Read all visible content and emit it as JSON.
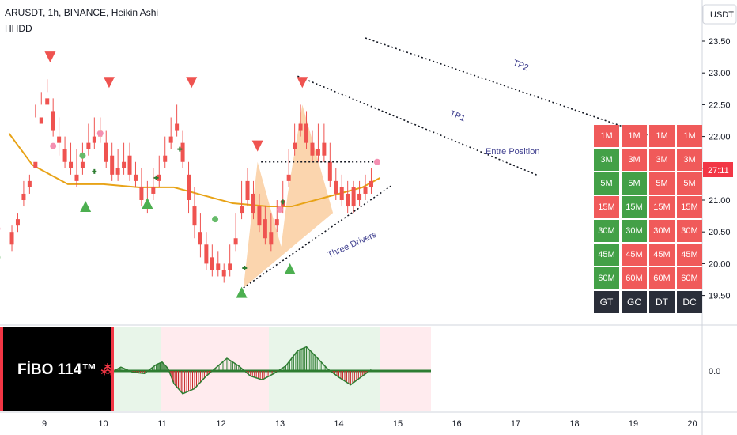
{
  "header": {
    "symbol_line": "ARUSDT, 1h, BINANCE, Heikin Ashi",
    "indicator_line": "HHDD"
  },
  "price_axis": {
    "currency": "USDT",
    "ticks": [
      "23.50",
      "23.00",
      "22.50",
      "22.00",
      "21.50",
      "21.00",
      "20.50",
      "20.00",
      "19.50"
    ],
    "countdown": "27:11",
    "countdown_color": "#f23645"
  },
  "oscillator_axis": {
    "zero_label": "0.0"
  },
  "time_axis": {
    "ticks": [
      "9",
      "10",
      "11",
      "12",
      "13",
      "14",
      "15",
      "16",
      "17",
      "18",
      "19",
      "20"
    ]
  },
  "annotations": {
    "tp1": "TP1",
    "tp2": "TP2",
    "entry": "Entre Position",
    "pattern": "Three Drivers"
  },
  "fibo": {
    "label": "FİBO 114™",
    "icon": "burst-icon"
  },
  "timeframe_table": {
    "columns": [
      "GT",
      "GC",
      "DT",
      "DC"
    ],
    "rows": [
      {
        "cells": [
          {
            "t": "1M",
            "c": "red"
          },
          {
            "t": "1M",
            "c": "red"
          },
          {
            "t": "1M",
            "c": "red"
          },
          {
            "t": "1M",
            "c": "red"
          }
        ]
      },
      {
        "cells": [
          {
            "t": "3M",
            "c": "green"
          },
          {
            "t": "3M",
            "c": "red"
          },
          {
            "t": "3M",
            "c": "red"
          },
          {
            "t": "3M",
            "c": "red"
          }
        ]
      },
      {
        "cells": [
          {
            "t": "5M",
            "c": "green"
          },
          {
            "t": "5M",
            "c": "green"
          },
          {
            "t": "5M",
            "c": "red"
          },
          {
            "t": "5M",
            "c": "red"
          }
        ]
      },
      {
        "cells": [
          {
            "t": "15M",
            "c": "red"
          },
          {
            "t": "15M",
            "c": "green"
          },
          {
            "t": "15M",
            "c": "red"
          },
          {
            "t": "15M",
            "c": "red"
          }
        ]
      },
      {
        "cells": [
          {
            "t": "30M",
            "c": "green"
          },
          {
            "t": "30M",
            "c": "green"
          },
          {
            "t": "30M",
            "c": "red"
          },
          {
            "t": "30M",
            "c": "red"
          }
        ]
      },
      {
        "cells": [
          {
            "t": "45M",
            "c": "green"
          },
          {
            "t": "45M",
            "c": "red"
          },
          {
            "t": "45M",
            "c": "red"
          },
          {
            "t": "45M",
            "c": "red"
          }
        ]
      },
      {
        "cells": [
          {
            "t": "60M",
            "c": "green"
          },
          {
            "t": "60M",
            "c": "red"
          },
          {
            "t": "60M",
            "c": "red"
          },
          {
            "t": "60M",
            "c": "red"
          }
        ]
      }
    ]
  },
  "colors": {
    "bull": "#26a69a",
    "bear": "#ef5350",
    "ma": "#e8a317",
    "cell_red": "#f05a5a",
    "cell_green": "#43a047",
    "cell_dark": "#2a2e39",
    "pattern_fill": "#f7b36b"
  },
  "chart_data": {
    "type": "candlestick",
    "x_unit": "day of month",
    "xlim": [
      8.4,
      20.4
    ],
    "ylim": [
      19.35,
      23.75
    ],
    "candles": [
      [
        8.45,
        20.5,
        20.6,
        20.3,
        20.2
      ],
      [
        8.55,
        20.7,
        20.8,
        20.6,
        20.5
      ],
      [
        8.65,
        21.1,
        21.3,
        21.0,
        20.9
      ],
      [
        8.75,
        21.3,
        21.4,
        21.2,
        21.1
      ],
      [
        8.85,
        21.6,
        22.5,
        21.5,
        22.3
      ],
      [
        8.95,
        22.3,
        22.7,
        22.2,
        22.5
      ],
      [
        9.05,
        22.6,
        22.9,
        22.5,
        22.7
      ],
      [
        9.15,
        22.4,
        22.6,
        22.1,
        22.0
      ],
      [
        9.25,
        22.0,
        22.3,
        21.9,
        21.7
      ],
      [
        9.35,
        21.8,
        22.0,
        21.6,
        21.5
      ],
      [
        9.45,
        21.6,
        21.9,
        21.5,
        21.4
      ],
      [
        9.55,
        21.4,
        21.8,
        21.3,
        21.2
      ],
      [
        9.65,
        21.6,
        21.9,
        21.5,
        21.4
      ],
      [
        9.75,
        21.9,
        22.2,
        21.8,
        21.7
      ],
      [
        9.85,
        22.0,
        22.3,
        21.9,
        21.8
      ],
      [
        9.95,
        22.1,
        22.3,
        22.0,
        21.9
      ],
      [
        10.05,
        21.9,
        22.1,
        21.6,
        21.5
      ],
      [
        10.15,
        21.7,
        21.9,
        21.4,
        21.3
      ],
      [
        10.25,
        21.5,
        21.8,
        21.4,
        21.3
      ],
      [
        10.35,
        21.6,
        21.9,
        21.5,
        21.4
      ],
      [
        10.45,
        21.7,
        21.9,
        21.4,
        21.3
      ],
      [
        10.55,
        21.4,
        21.6,
        21.3,
        21.2
      ],
      [
        10.65,
        21.2,
        21.5,
        21.0,
        20.9
      ],
      [
        10.75,
        21.0,
        21.3,
        20.9,
        20.8
      ],
      [
        10.85,
        21.2,
        21.5,
        21.1,
        21.0
      ],
      [
        10.95,
        21.4,
        21.7,
        21.3,
        21.2
      ],
      [
        11.05,
        21.7,
        22.0,
        21.6,
        21.5
      ],
      [
        11.15,
        22.0,
        22.3,
        21.9,
        21.8
      ],
      [
        11.25,
        22.2,
        22.5,
        22.1,
        22.0
      ],
      [
        11.35,
        21.9,
        22.1,
        21.6,
        21.5
      ],
      [
        11.45,
        21.4,
        21.6,
        21.0,
        20.8
      ],
      [
        11.55,
        20.9,
        21.2,
        20.6,
        20.4
      ],
      [
        11.65,
        20.5,
        20.8,
        20.3,
        20.1
      ],
      [
        11.75,
        20.3,
        20.5,
        20.0,
        19.9
      ],
      [
        11.85,
        20.1,
        20.3,
        19.9,
        19.8
      ],
      [
        11.95,
        20.0,
        20.2,
        19.9,
        19.8
      ],
      [
        12.05,
        19.9,
        20.0,
        19.8,
        19.7
      ],
      [
        12.15,
        20.0,
        20.3,
        19.9,
        19.8
      ],
      [
        12.25,
        20.4,
        20.8,
        20.3,
        20.2
      ],
      [
        12.35,
        20.9,
        21.3,
        20.8,
        20.7
      ],
      [
        12.45,
        21.3,
        21.5,
        21.0,
        20.9
      ],
      [
        12.55,
        21.1,
        21.3,
        20.8,
        20.7
      ],
      [
        12.65,
        20.9,
        21.1,
        20.6,
        20.5
      ],
      [
        12.75,
        20.7,
        20.9,
        20.4,
        20.3
      ],
      [
        12.85,
        20.5,
        20.8,
        20.3,
        20.2
      ],
      [
        12.95,
        20.7,
        21.0,
        20.6,
        20.5
      ],
      [
        13.05,
        21.0,
        21.3,
        20.9,
        20.8
      ],
      [
        13.15,
        21.4,
        21.8,
        21.3,
        21.2
      ],
      [
        13.25,
        21.9,
        22.2,
        21.8,
        21.7
      ],
      [
        13.35,
        22.2,
        22.5,
        22.1,
        22.0
      ],
      [
        13.45,
        22.2,
        22.4,
        21.9,
        21.8
      ],
      [
        13.55,
        21.9,
        22.1,
        21.7,
        21.6
      ],
      [
        13.65,
        21.8,
        22.2,
        21.7,
        21.6
      ],
      [
        13.75,
        21.9,
        22.2,
        21.7,
        21.6
      ],
      [
        13.85,
        21.6,
        21.9,
        21.3,
        21.2
      ],
      [
        13.95,
        21.3,
        21.5,
        21.1,
        21.0
      ],
      [
        14.05,
        21.2,
        21.4,
        21.0,
        20.9
      ],
      [
        14.15,
        21.1,
        21.3,
        20.9,
        20.8
      ],
      [
        14.25,
        21.2,
        21.3,
        20.9,
        20.8
      ],
      [
        14.35,
        21.1,
        21.3,
        21.0,
        20.9
      ],
      [
        14.45,
        21.2,
        21.4,
        21.1,
        21.0
      ],
      [
        14.55,
        21.3,
        21.5,
        21.2,
        21.1
      ]
    ],
    "candle_fields": [
      "x",
      "open",
      "high",
      "close",
      "low"
    ],
    "ma_line": [
      [
        8.4,
        22.05
      ],
      [
        8.8,
        21.55
      ],
      [
        9.4,
        21.25
      ],
      [
        10.0,
        21.25
      ],
      [
        10.6,
        21.2
      ],
      [
        11.2,
        21.2
      ],
      [
        11.6,
        21.1
      ],
      [
        12.2,
        20.95
      ],
      [
        12.8,
        20.9
      ],
      [
        13.2,
        20.9
      ],
      [
        13.8,
        21.05
      ],
      [
        14.4,
        21.2
      ],
      [
        14.7,
        21.35
      ]
    ],
    "pattern_polygons": [
      [
        [
          12.38,
          19.62
        ],
        [
          12.62,
          21.6
        ],
        [
          13.02,
          20.27
        ],
        [
          13.13,
          21.08
        ],
        [
          13.38,
          22.5
        ],
        [
          13.9,
          20.8
        ]
      ]
    ],
    "trend_lines": [
      {
        "from": [
          12.38,
          19.62
        ],
        "to": [
          14.88,
          21.22
        ],
        "style": "dotted"
      },
      {
        "from": [
          12.68,
          21.6
        ],
        "to": [
          14.65,
          21.6
        ],
        "style": "dotted"
      },
      {
        "from": [
          13.3,
          22.95
        ],
        "to": [
          17.4,
          21.38
        ],
        "style": "dotted"
      },
      {
        "from": [
          14.45,
          23.55
        ],
        "to": [
          19.25,
          22.02
        ],
        "style": "dotted"
      }
    ],
    "sell_markers": [
      [
        9.1,
        23.25
      ],
      [
        10.1,
        22.85
      ],
      [
        11.5,
        22.85
      ],
      [
        12.62,
        21.85
      ],
      [
        13.38,
        22.85
      ]
    ],
    "buy_markers": [
      [
        9.7,
        20.9
      ],
      [
        10.75,
        20.95
      ],
      [
        12.35,
        19.55
      ],
      [
        13.17,
        19.92
      ]
    ],
    "pink_dots": [
      [
        8.2,
        20.55
      ],
      [
        9.15,
        21.85
      ],
      [
        9.95,
        22.05
      ],
      [
        13.0,
        20.85
      ],
      [
        14.65,
        21.6
      ]
    ],
    "green_dots": [
      [
        8.2,
        20.1
      ],
      [
        9.65,
        21.7
      ],
      [
        11.9,
        20.7
      ]
    ],
    "plus_markers": [
      [
        9.85,
        21.45
      ],
      [
        10.9,
        21.35
      ],
      [
        11.3,
        21.8
      ],
      [
        12.4,
        19.93
      ],
      [
        13.05,
        20.97
      ]
    ],
    "oscillator": [
      [
        10.18,
        0.0
      ],
      [
        10.3,
        0.15
      ],
      [
        10.5,
        -0.05
      ],
      [
        10.7,
        -0.1
      ],
      [
        10.9,
        0.25
      ],
      [
        11.0,
        0.35
      ],
      [
        11.1,
        0.1
      ],
      [
        11.2,
        -0.5
      ],
      [
        11.35,
        -0.9
      ],
      [
        11.55,
        -0.7
      ],
      [
        11.75,
        -0.2
      ],
      [
        11.9,
        0.1
      ],
      [
        12.1,
        0.5
      ],
      [
        12.3,
        0.2
      ],
      [
        12.5,
        -0.2
      ],
      [
        12.7,
        -0.35
      ],
      [
        12.9,
        -0.1
      ],
      [
        13.1,
        0.2
      ],
      [
        13.3,
        0.8
      ],
      [
        13.45,
        0.95
      ],
      [
        13.6,
        0.6
      ],
      [
        13.8,
        0.1
      ],
      [
        14.0,
        -0.25
      ],
      [
        14.2,
        -0.55
      ],
      [
        14.4,
        -0.2
      ],
      [
        14.55,
        0.05
      ]
    ]
  }
}
